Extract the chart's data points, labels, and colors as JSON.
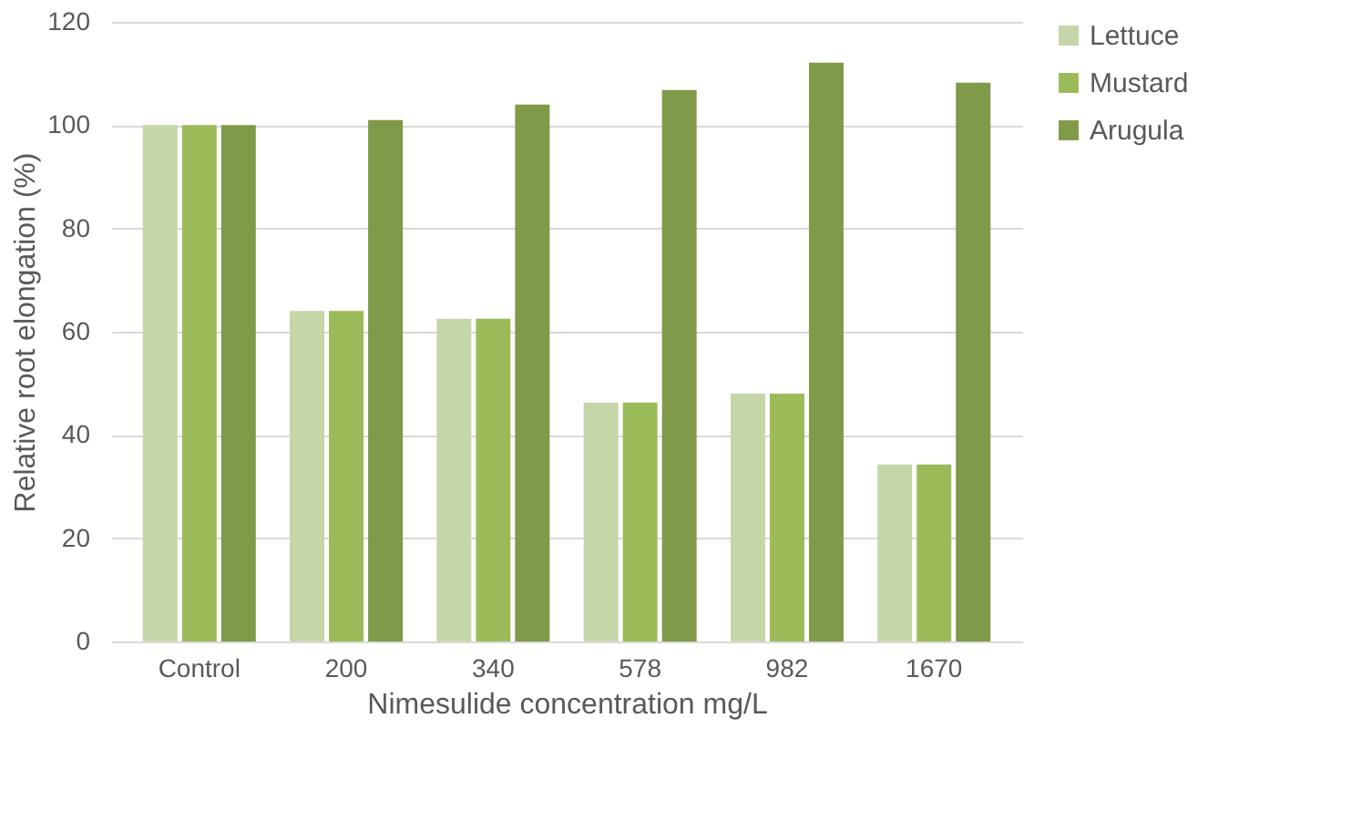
{
  "chart_data": {
    "type": "bar",
    "categories": [
      "Control",
      "200",
      "340",
      "578",
      "982",
      "1670"
    ],
    "series": [
      {
        "name": "Lettuce",
        "color": "#c5d6a9",
        "values": [
          100,
          64,
          62.5,
          46.3,
          48,
          34.3
        ]
      },
      {
        "name": "Mustard",
        "color": "#9bbb59",
        "values": [
          100,
          64,
          62.5,
          46.3,
          48,
          34.3
        ]
      },
      {
        "name": "Arugula",
        "color": "#7f9a48",
        "values": [
          100,
          101,
          104,
          106.8,
          112.1,
          108.2
        ]
      }
    ],
    "xlabel": "Nimesulide  concentration mg/L",
    "ylabel": "Relative root elongation (%)",
    "ylim": [
      0,
      120
    ],
    "yticks": [
      0,
      20,
      40,
      60,
      80,
      100,
      120
    ],
    "grid": "y",
    "legend": "right"
  }
}
